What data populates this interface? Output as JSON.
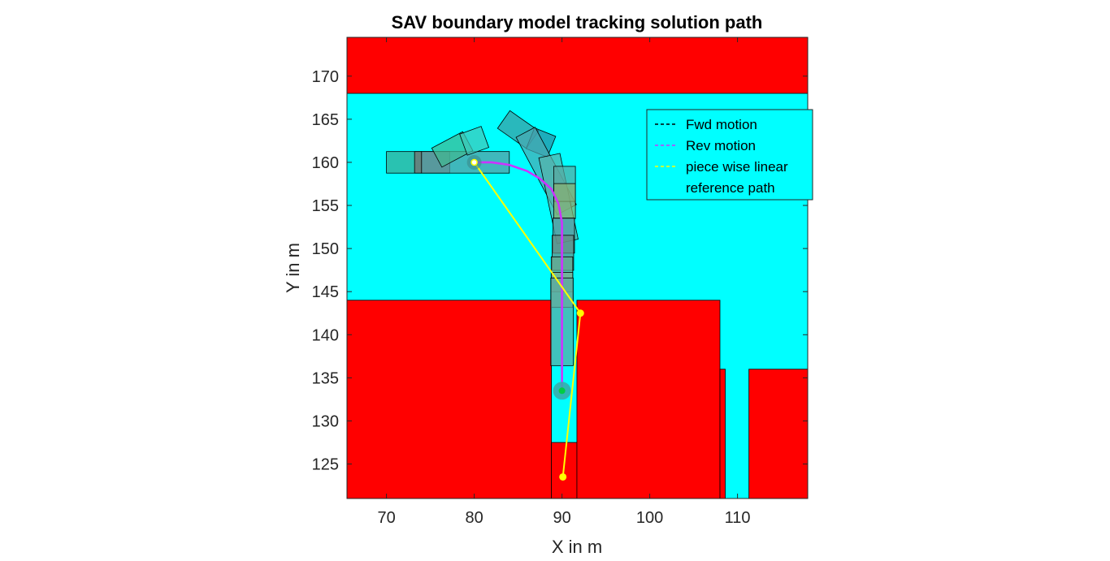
{
  "chart_data": {
    "type": "line",
    "title": "SAV boundary model tracking solution path",
    "xlabel": "X in m",
    "ylabel": "Y in m",
    "xlim": [
      65.5,
      118
    ],
    "ylim": [
      121,
      174.5
    ],
    "xticks": [
      70,
      80,
      90,
      100,
      110
    ],
    "yticks": [
      125,
      130,
      135,
      140,
      145,
      150,
      155,
      160,
      165,
      170
    ],
    "grid": false,
    "legend_position": "upper-right",
    "colors": {
      "obstacle": "#ff0000",
      "free_space": "#00ffff",
      "rev_path": "#cc33ff",
      "ref_path": "#ffff00",
      "goal_marker": "#00cc44",
      "vehicle_fill": "#7a8a8a"
    },
    "series": [
      {
        "name": "Fwd motion",
        "style": "dashed",
        "color": "#000000",
        "x": [],
        "y": []
      },
      {
        "name": "Rev motion",
        "style": "dashed",
        "color": "#cc33ff",
        "x": [
          80.0,
          82.0,
          84.0,
          86.0,
          87.5,
          88.8,
          89.6,
          90.0,
          90.0,
          90.0,
          90.0
        ],
        "y": [
          160.0,
          160.0,
          159.7,
          159.0,
          158.1,
          156.9,
          155.2,
          153.0,
          148.0,
          140.0,
          133.5
        ]
      },
      {
        "name": "piece wise linear reference path",
        "style": "solid",
        "color": "#ffff00",
        "x": [
          80.0,
          92.1,
          90.1
        ],
        "y": [
          160.0,
          142.5,
          123.5
        ]
      }
    ],
    "legend": [
      {
        "label": "Fwd motion",
        "color": "#000000",
        "dash": true
      },
      {
        "label": "Rev motion",
        "color": "#cc33ff",
        "dash": true
      },
      {
        "label": "piece wise linear",
        "color": "#ffff00",
        "dash": true
      },
      {
        "label": "reference path",
        "color": "",
        "dash": false
      }
    ],
    "obstacles": [
      {
        "x0": 65.5,
        "x1": 118,
        "y0": 168.0,
        "y1": 174.5
      },
      {
        "x0": 65.5,
        "x1": 88.8,
        "y0": 121,
        "y1": 144.0
      },
      {
        "x0": 88.8,
        "x1": 91.7,
        "y0": 121,
        "y1": 127.5
      },
      {
        "x0": 91.7,
        "x1": 108.0,
        "y0": 121,
        "y1": 144.0
      },
      {
        "x0": 108.0,
        "x1": 108.6,
        "y0": 121,
        "y1": 136.0
      },
      {
        "x0": 111.3,
        "x1": 118,
        "y0": 121,
        "y1": 136.0
      }
    ],
    "vehicle_footprints": [
      {
        "cx": 72.0,
        "cy": 160.0,
        "len": 4,
        "wid": 2.5,
        "ang": 0,
        "fill": "#3aa890"
      },
      {
        "cx": 75.2,
        "cy": 160.0,
        "len": 4,
        "wid": 2.5,
        "ang": 0,
        "fill": "#7a6a6a"
      },
      {
        "cx": 79.0,
        "cy": 160.0,
        "len": 10,
        "wid": 2.5,
        "ang": 0,
        "fill": "#5a9aa0"
      },
      {
        "cx": 77.5,
        "cy": 161.5,
        "len": 4,
        "wid": 2.5,
        "ang": 28,
        "fill": "#40b890"
      },
      {
        "cx": 80.0,
        "cy": 162.5,
        "len": 2.6,
        "wid": 2.6,
        "ang": 20,
        "fill": "#40c8b8"
      },
      {
        "cx": 85.0,
        "cy": 163.8,
        "len": 4,
        "wid": 2.5,
        "ang": -35,
        "fill": "#3a9aa0"
      },
      {
        "cx": 87.6,
        "cy": 162.3,
        "len": 2.6,
        "wid": 2.6,
        "ang": -22,
        "fill": "#2a8aa0"
      },
      {
        "cx": 88.2,
        "cy": 159.0,
        "len": 10,
        "wid": 2.5,
        "ang": -62,
        "fill": "#4aa8b0"
      },
      {
        "cx": 89.6,
        "cy": 155.8,
        "len": 10,
        "wid": 2.5,
        "ang": -78,
        "fill": "#5ab0a8"
      },
      {
        "cx": 90.3,
        "cy": 157.5,
        "len": 4,
        "wid": 2.5,
        "ang": -90,
        "fill": "#5aa8a0"
      },
      {
        "cx": 90.3,
        "cy": 155.5,
        "len": 4,
        "wid": 2.5,
        "ang": -90,
        "fill": "#8ab070"
      },
      {
        "cx": 90.2,
        "cy": 151.5,
        "len": 4,
        "wid": 2.5,
        "ang": -90,
        "fill": "#5a9aa0"
      },
      {
        "cx": 90.1,
        "cy": 149.5,
        "len": 4,
        "wid": 2.5,
        "ang": -90,
        "fill": "#6a8a80"
      },
      {
        "cx": 90.0,
        "cy": 147.0,
        "len": 4,
        "wid": 2.5,
        "ang": -90,
        "fill": "#6aa890"
      },
      {
        "cx": 90.0,
        "cy": 145.2,
        "len": 4,
        "wid": 2.5,
        "ang": -90,
        "fill": "#80b090"
      },
      {
        "cx": 90.0,
        "cy": 141.5,
        "len": 10,
        "wid": 2.6,
        "ang": -90,
        "fill": "#5aa8a0"
      }
    ],
    "markers": [
      {
        "x": 80.0,
        "y": 160.0,
        "kind": "start"
      },
      {
        "x": 90.0,
        "y": 133.5,
        "kind": "goal"
      },
      {
        "x": 92.1,
        "y": 142.5,
        "kind": "ref-node"
      },
      {
        "x": 90.1,
        "y": 123.5,
        "kind": "ref-node"
      }
    ]
  }
}
